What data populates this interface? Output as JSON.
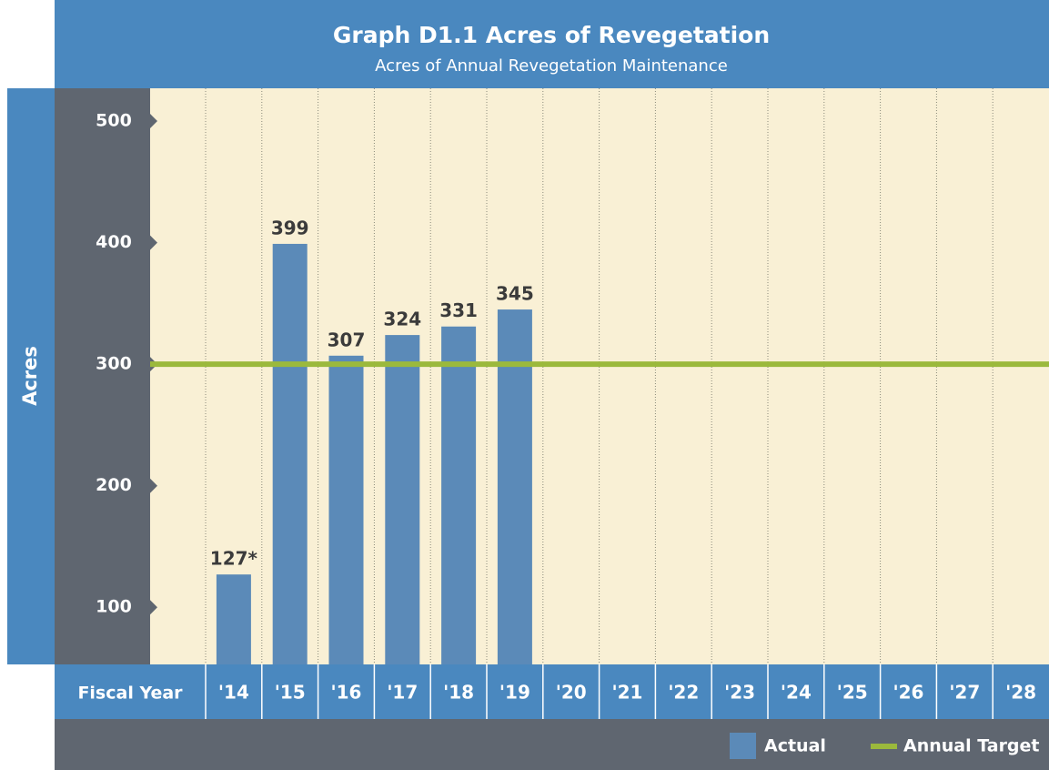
{
  "chart_data": {
    "type": "bar",
    "title": "Graph D1.1  Acres of Revegetation",
    "subtitle": "Acres of Annual Revegetation Maintenance",
    "y_label": "Acres",
    "x_label": "Fiscal Year",
    "categories": [
      "'14",
      "'15",
      "'16",
      "'17",
      "'18",
      "'19",
      "'20",
      "'21",
      "'22",
      "'23",
      "'24",
      "'25",
      "'26",
      "'27",
      "'28"
    ],
    "series": [
      {
        "name": "Actual",
        "color": "#5b8ab8",
        "values": [
          127,
          399,
          307,
          324,
          331,
          345,
          null,
          null,
          null,
          null,
          null,
          null,
          null,
          null,
          null
        ],
        "value_labels": [
          "127*",
          "399",
          "307",
          "324",
          "331",
          "345",
          null,
          null,
          null,
          null,
          null,
          null,
          null,
          null,
          null
        ]
      }
    ],
    "target": {
      "name": "Annual Target",
      "color": "#9bb93c",
      "value": 300
    },
    "ylim": [
      53,
      527
    ],
    "yticks": [
      100,
      200,
      300,
      400,
      500
    ],
    "grid": true
  }
}
